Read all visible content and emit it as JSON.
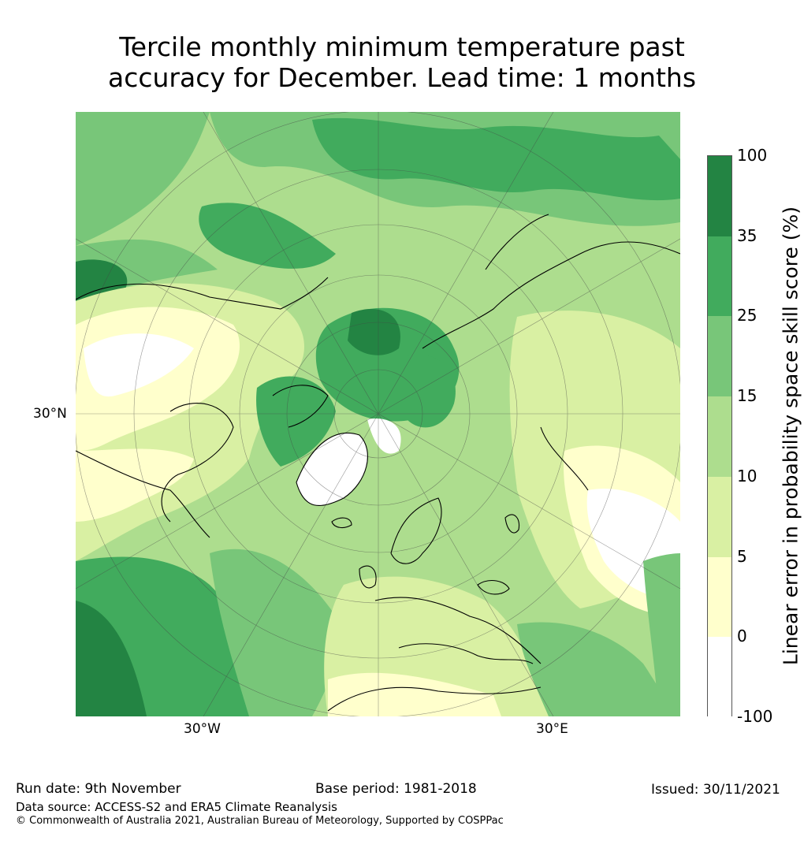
{
  "title": {
    "line1": "Tercile monthly minimum temperature past",
    "line2": "accuracy for December. Lead time: 1 months"
  },
  "map": {
    "projection": "north-polar-stereographic",
    "labels": {
      "lat_30n": "30°N",
      "lon_30w": "30°W",
      "lon_30e": "30°E"
    }
  },
  "colorbar": {
    "label": "Linear error in probability space skill score (%)",
    "ticks": [
      "100",
      "35",
      "25",
      "15",
      "10",
      "5",
      "0",
      "-100"
    ],
    "bins": [
      {
        "range": "35 to 100",
        "color": "#238443"
      },
      {
        "range": "25 to 35",
        "color": "#41ab5d"
      },
      {
        "range": "15 to 25",
        "color": "#78c679"
      },
      {
        "range": "10 to 15",
        "color": "#addd8e"
      },
      {
        "range": "5 to 10",
        "color": "#d9f0a3"
      },
      {
        "range": "0 to 5",
        "color": "#ffffcc"
      },
      {
        "range": "-100 to 0",
        "color": "#ffffff"
      }
    ]
  },
  "footer": {
    "run_date": "Run date: 9th November",
    "base_period": "Base period: 1981-2018",
    "issued": "Issued: 30/11/2021",
    "data_source": "Data source: ACCESS-S2 and ERA5 Climate Reanalysis",
    "copyright": "© Commonwealth of Australia 2021, Australian Bureau of Meteorology, Supported by COSPPac"
  }
}
